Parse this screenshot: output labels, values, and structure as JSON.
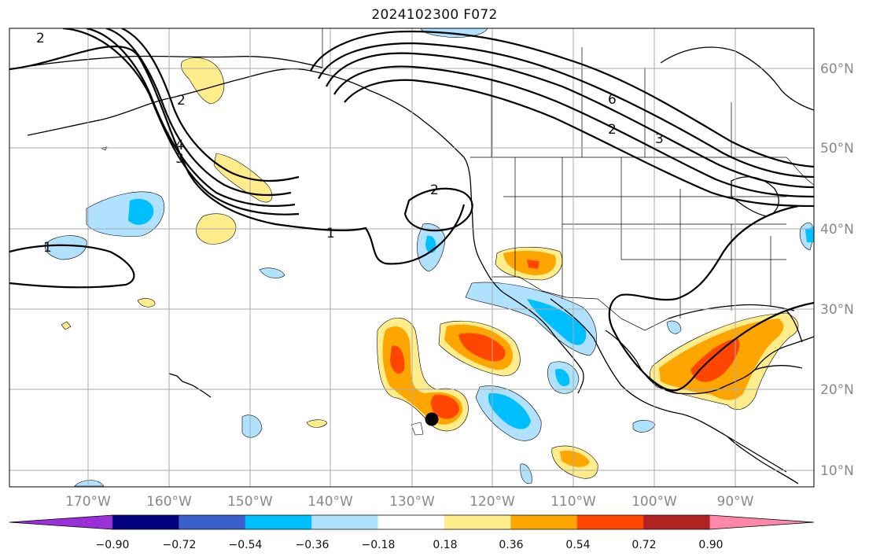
{
  "title": "2024102300 F072",
  "lon_labels": [
    "170°W",
    "160°W",
    "150°W",
    "140°W",
    "130°W",
    "120°W",
    "110°W",
    "100°W",
    "90°W"
  ],
  "lat_labels": [
    "60°N",
    "50°N",
    "40°N",
    "30°N",
    "20°N",
    "10°N"
  ],
  "colorbar": {
    "ticks": [
      "−0.90",
      "−0.72",
      "−0.54",
      "−0.36",
      "−0.18",
      "0.18",
      "0.36",
      "0.54",
      "0.72",
      "0.90"
    ],
    "colors": [
      "#9b30d9",
      "#000080",
      "#3a5fcd",
      "#00bfff",
      "#b0e2ff",
      "#ffffff",
      "#ffec8b",
      "#ffa500",
      "#ff4500",
      "#b22222",
      "#ff88aa"
    ]
  },
  "contour_labels": [
    "2",
    "1",
    "2",
    "1",
    "6",
    "2",
    "3",
    "4",
    "3",
    "2"
  ]
}
